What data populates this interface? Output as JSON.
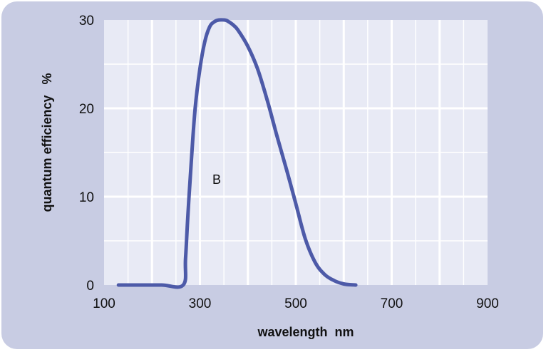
{
  "chart_data": {
    "type": "line",
    "title": "",
    "xlabel": "wavelength  nm",
    "ylabel": "quantum efficiency   %",
    "xlim": [
      100,
      900
    ],
    "ylim": [
      0,
      30
    ],
    "x_ticks": [
      "100",
      "300",
      "500",
      "700",
      "900"
    ],
    "y_ticks": [
      "0",
      "10",
      "20",
      "30"
    ],
    "grid": true,
    "colors": {
      "line": "#4d5aa8",
      "plot_bg": "#e8eaf5",
      "grid": "#ffffff",
      "frame": "#c8cce3"
    },
    "series": [
      {
        "name": "B",
        "x": [
          130,
          170,
          220,
          265,
          270,
          275,
          282,
          290,
          300,
          310,
          320,
          330,
          340,
          350,
          355,
          360,
          370,
          380,
          400,
          420,
          440,
          460,
          480,
          500,
          520,
          540,
          560,
          580,
          600,
          620,
          625
        ],
        "y": [
          0,
          0,
          0,
          0,
          3,
          8,
          14,
          20,
          24.5,
          27.5,
          29.2,
          29.8,
          30,
          30,
          29.95,
          29.8,
          29.4,
          28.8,
          27,
          24.5,
          21,
          17,
          13.2,
          9.2,
          5.2,
          2.6,
          1.2,
          0.5,
          0.12,
          0.02,
          0
        ]
      }
    ],
    "annotations": [
      {
        "text": "B",
        "x": 335,
        "y": 12
      }
    ]
  }
}
